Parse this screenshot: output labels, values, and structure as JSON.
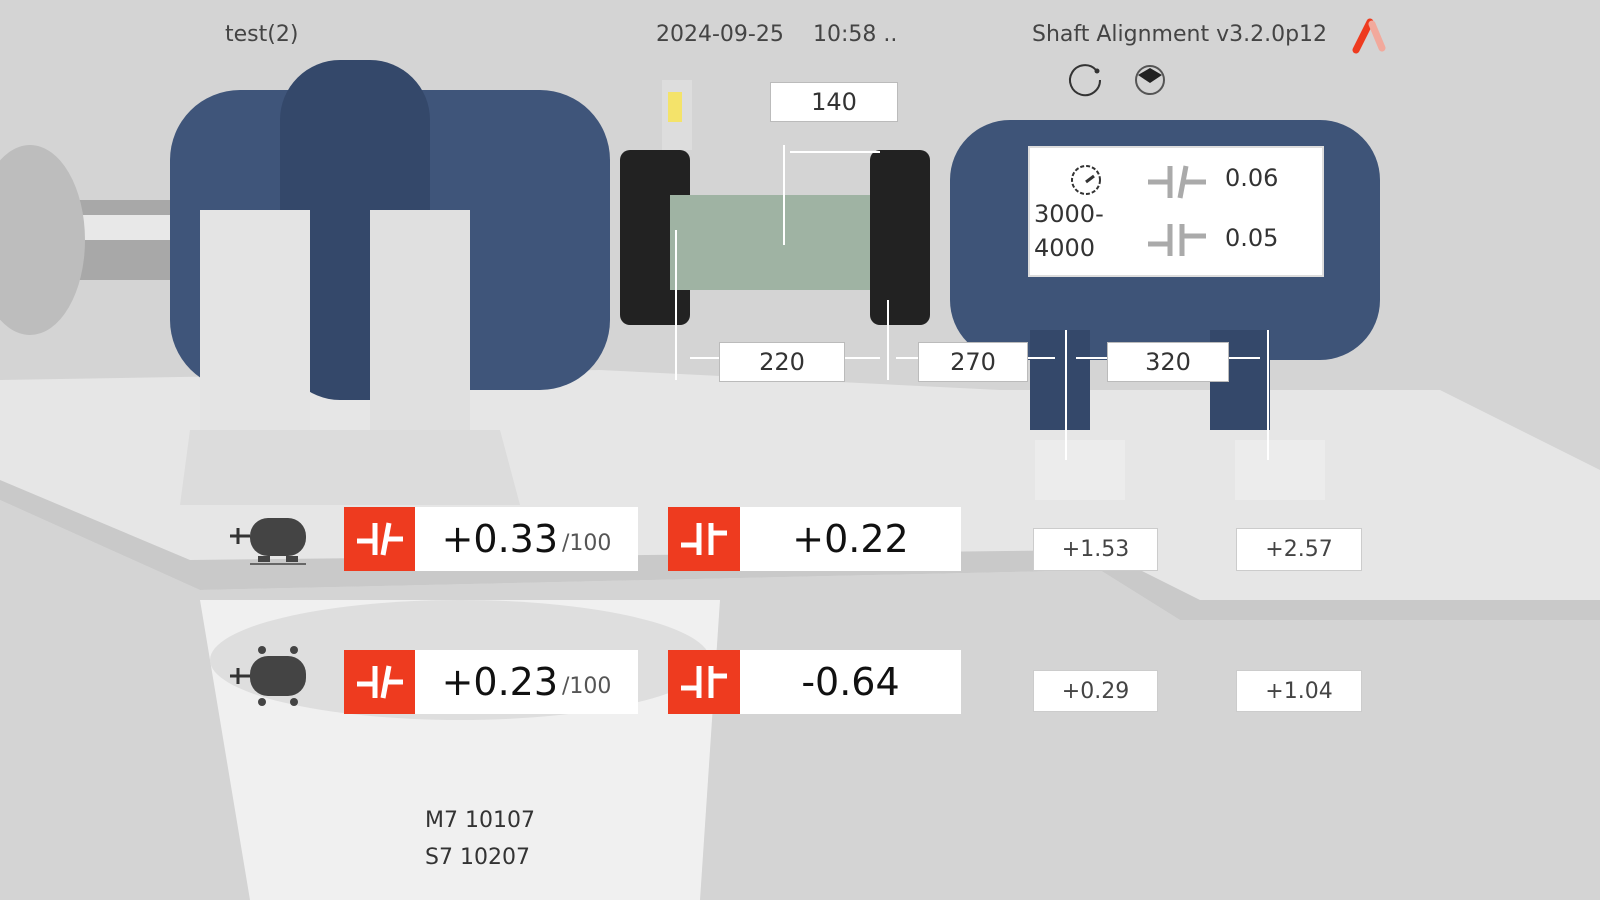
{
  "header": {
    "file_name": "test(2)",
    "date": "2024-09-25",
    "time": "10:58 ..",
    "app_title": "Shaft Alignment v3.2.0p12",
    "brand_color": "#ee3b1f"
  },
  "toolbar": {
    "icons": [
      "rotate-icon",
      "view-perspective-icon"
    ]
  },
  "dimensions": {
    "sensor_distance": "140",
    "coupling_to_sensor": "220",
    "coupling_to_front_feet": "270",
    "front_to_rear_feet": "320"
  },
  "tolerance": {
    "rpm_icon": "speedometer-icon",
    "rpm_range_line1": "3000-",
    "rpm_range_line2": "4000",
    "angular_tolerance": "0.06",
    "offset_tolerance": "0.05"
  },
  "results": {
    "vertical": {
      "icon": "motor-side-view-icon",
      "angularity": "+0.33",
      "angularity_unit": "/100",
      "offset": "+0.22",
      "front_foot": "+1.53",
      "rear_foot": "+2.57"
    },
    "horizontal": {
      "icon": "motor-top-view-icon",
      "angularity": "+0.23",
      "angularity_unit": "/100",
      "offset": "-0.64",
      "front_foot": "+0.29",
      "rear_foot": "+1.04"
    }
  },
  "sensors": {
    "m_sensor": "M7 10107",
    "s_sensor": "S7 10207"
  }
}
